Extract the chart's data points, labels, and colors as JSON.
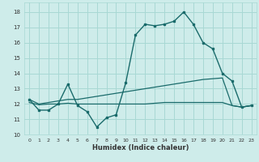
{
  "xlabel": "Humidex (Indice chaleur)",
  "bg_color": "#ceecea",
  "grid_color": "#a8d8d4",
  "line_color": "#1a6b6b",
  "xlim": [
    -0.5,
    23.5
  ],
  "ylim": [
    10,
    18.6
  ],
  "yticks": [
    10,
    11,
    12,
    13,
    14,
    15,
    16,
    17,
    18
  ],
  "xticks": [
    0,
    1,
    2,
    3,
    4,
    5,
    6,
    7,
    8,
    9,
    10,
    11,
    12,
    13,
    14,
    15,
    16,
    17,
    18,
    19,
    20,
    21,
    22,
    23
  ],
  "series_main": [
    12.3,
    11.6,
    11.6,
    12.0,
    13.3,
    11.9,
    11.5,
    10.5,
    11.1,
    11.3,
    13.4,
    16.5,
    17.2,
    17.1,
    17.2,
    17.4,
    18.0,
    17.2,
    16.0,
    15.6,
    14.0,
    13.5,
    11.8,
    11.9
  ],
  "series_upper": [
    12.3,
    12.0,
    12.1,
    12.2,
    12.3,
    12.3,
    12.4,
    12.5,
    12.6,
    12.7,
    12.8,
    12.9,
    13.0,
    13.1,
    13.2,
    13.3,
    13.4,
    13.5,
    13.6,
    13.65,
    13.7,
    11.9,
    11.8,
    11.9
  ],
  "series_lower": [
    12.1,
    11.95,
    12.0,
    12.0,
    12.05,
    12.0,
    12.0,
    12.0,
    12.0,
    12.0,
    12.0,
    12.0,
    12.0,
    12.05,
    12.1,
    12.1,
    12.1,
    12.1,
    12.1,
    12.1,
    12.1,
    11.9,
    11.8,
    11.9
  ]
}
